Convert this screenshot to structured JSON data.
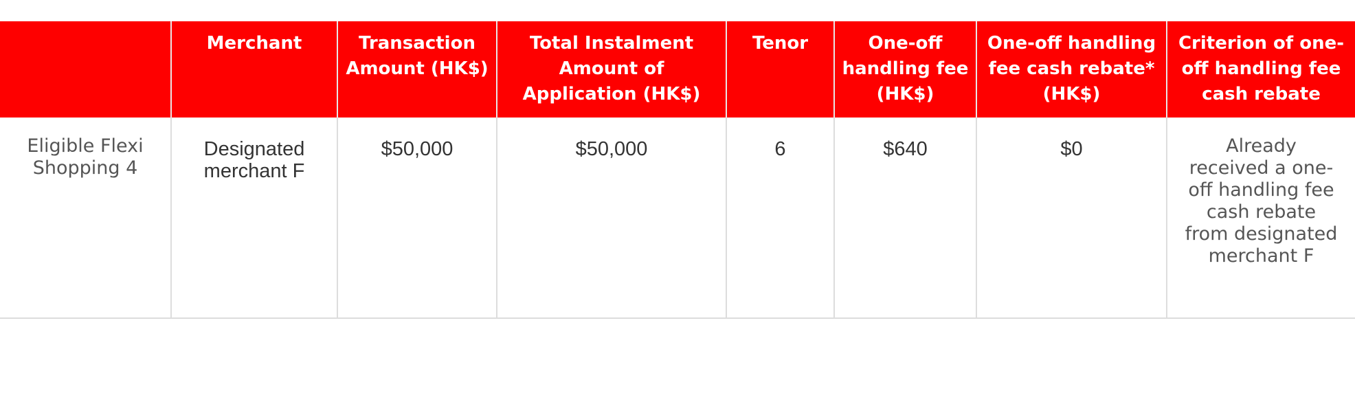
{
  "colors": {
    "header_bg": "#fe0000",
    "header_text": "#ffffff",
    "body_text": "#333333",
    "border": "#dddddd"
  },
  "table": {
    "headers": [
      "",
      "Merchant",
      "Transaction Amount (HK$)",
      "Total Instalment Amount of Application (HK$)",
      "Tenor",
      "One-off handling fee (HK$)",
      "One-off handling fee cash rebate* (HK$)",
      "Criterion of one-off handling fee cash rebate"
    ],
    "rows": [
      [
        "Eligible Flexi Shopping 4",
        "Designated merchant F",
        "$50,000",
        "$50,000",
        "6",
        "$640",
        "$0",
        "Already received a one-off handling fee cash rebate from designated merchant F"
      ]
    ]
  }
}
